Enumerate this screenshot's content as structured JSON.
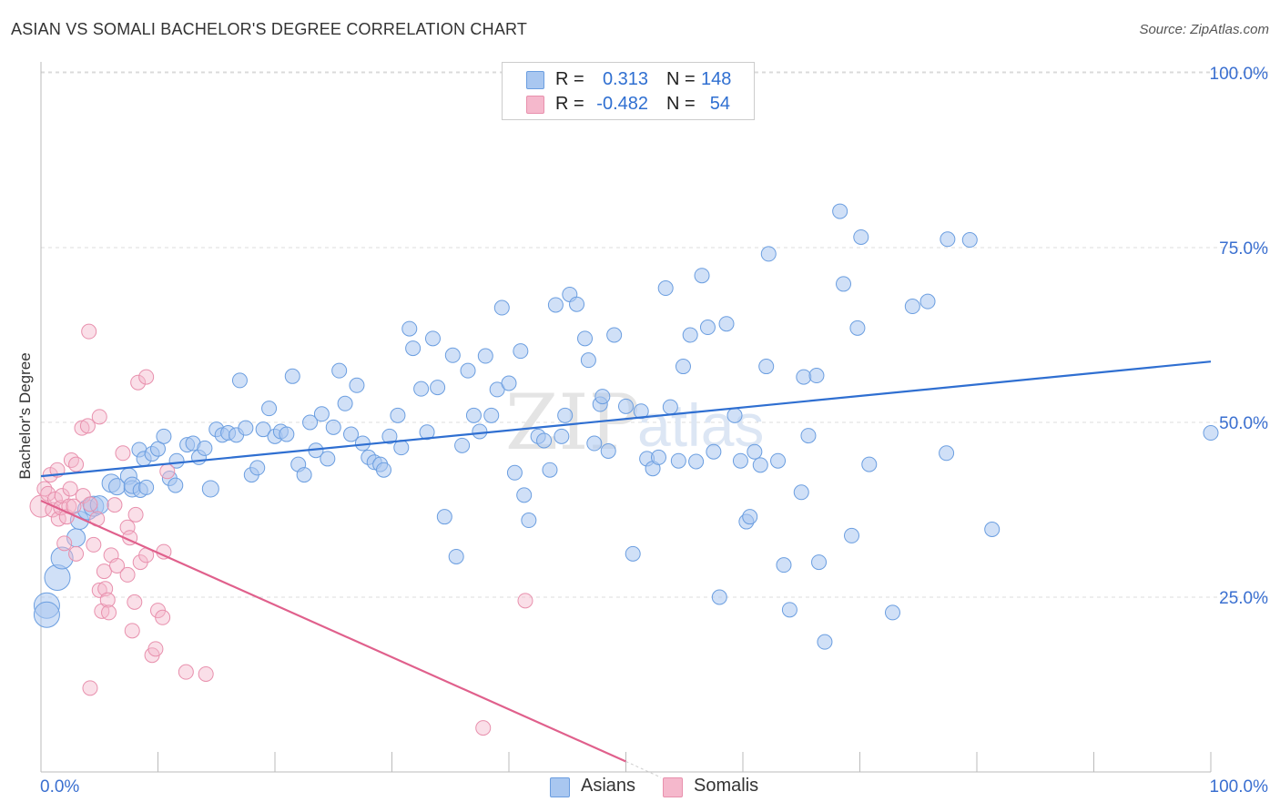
{
  "header": {
    "title": "ASIAN VS SOMALI BACHELOR'S DEGREE CORRELATION CHART",
    "source": "Source: ZipAtlas.com"
  },
  "legend": {
    "rows": [
      {
        "r_label": "R =",
        "r_value": "0.313",
        "n_label": "N =",
        "n_value": "148",
        "color": "#a9c7f0"
      },
      {
        "r_label": "R =",
        "r_value": "-0.482",
        "n_label": "N =",
        "n_value": "54",
        "color": "#f5b8cc"
      }
    ]
  },
  "watermark": {
    "zip": "ZIP",
    "atlas": "atlas"
  },
  "colors": {
    "asian_fill": "#a9c7f0",
    "asian_stroke": "#6b9ee0",
    "asian_line": "#2f6fd1",
    "somali_fill": "#f5b8cc",
    "somali_stroke": "#e890ad",
    "somali_line": "#e0608c",
    "axis_label": "#3a6fd0"
  },
  "chart_data": {
    "type": "scatter",
    "title": "ASIAN VS SOMALI BACHELOR'S DEGREE CORRELATION CHART",
    "xlabel": "",
    "ylabel": "Bachelor's Degree",
    "xlim": [
      0,
      100
    ],
    "ylim": [
      0,
      100
    ],
    "x_tick_labels": [
      "0.0%",
      "100.0%"
    ],
    "y_tick_labels": [
      "25.0%",
      "50.0%",
      "75.0%",
      "100.0%"
    ],
    "y_ticks": [
      25,
      50,
      75,
      100
    ],
    "grid": true,
    "legend_position": "top-center",
    "series": [
      {
        "name": "Asians",
        "trend": {
          "x": [
            0,
            100
          ],
          "y": [
            42.3,
            58.7
          ]
        },
        "points": [
          [
            0.5,
            23.8,
            14
          ],
          [
            0.5,
            22.5,
            14
          ],
          [
            1.4,
            27.8,
            14
          ],
          [
            1.8,
            30.6,
            12
          ],
          [
            3.0,
            33.5,
            10
          ],
          [
            3.3,
            36.0,
            10
          ],
          [
            4.0,
            37.5,
            11
          ],
          [
            4.5,
            38.0,
            11
          ],
          [
            5.0,
            38.2,
            10
          ],
          [
            6.0,
            41.3,
            10
          ],
          [
            6.5,
            40.8,
            9
          ],
          [
            7.5,
            42.3,
            9
          ],
          [
            7.8,
            40.5,
            9
          ],
          [
            7.8,
            41.0,
            9
          ],
          [
            8.5,
            40.3,
            8
          ],
          [
            9.0,
            40.7,
            8
          ],
          [
            8.4,
            46.1,
            8
          ],
          [
            8.8,
            44.8,
            8
          ],
          [
            9.5,
            45.5,
            8
          ],
          [
            10.0,
            46.2,
            8
          ],
          [
            10.5,
            48.0,
            8
          ],
          [
            11.0,
            42.0,
            8
          ],
          [
            11.5,
            41.0,
            8
          ],
          [
            11.6,
            44.5,
            8
          ],
          [
            12.5,
            46.8,
            8
          ],
          [
            13.0,
            47.0,
            8
          ],
          [
            13.5,
            45.0,
            8
          ],
          [
            14.0,
            46.3,
            8
          ],
          [
            14.5,
            40.5,
            9
          ],
          [
            15.0,
            49.0,
            8
          ],
          [
            15.5,
            48.2,
            8
          ],
          [
            16.0,
            48.5,
            8
          ],
          [
            16.7,
            48.2,
            8
          ],
          [
            17.0,
            56.0,
            8
          ],
          [
            17.5,
            49.2,
            8
          ],
          [
            18.0,
            42.5,
            8
          ],
          [
            18.5,
            43.5,
            8
          ],
          [
            19.0,
            49.0,
            8
          ],
          [
            19.5,
            52.0,
            8
          ],
          [
            20.0,
            48.0,
            8
          ],
          [
            20.5,
            48.7,
            8
          ],
          [
            21.0,
            48.3,
            8
          ],
          [
            21.5,
            56.6,
            8
          ],
          [
            22.0,
            44.0,
            8
          ],
          [
            22.5,
            42.5,
            8
          ],
          [
            23.0,
            50.0,
            8
          ],
          [
            23.5,
            46.0,
            8
          ],
          [
            24.0,
            51.2,
            8
          ],
          [
            24.5,
            44.8,
            8
          ],
          [
            25.0,
            49.3,
            8
          ],
          [
            25.5,
            57.4,
            8
          ],
          [
            26.0,
            52.7,
            8
          ],
          [
            26.5,
            48.3,
            8
          ],
          [
            27.0,
            55.3,
            8
          ],
          [
            27.5,
            47.0,
            8
          ],
          [
            28.0,
            45.0,
            8
          ],
          [
            28.5,
            44.3,
            8
          ],
          [
            29.0,
            44.0,
            8
          ],
          [
            29.3,
            43.2,
            8
          ],
          [
            29.8,
            48.0,
            8
          ],
          [
            30.5,
            51.0,
            8
          ],
          [
            30.8,
            46.4,
            8
          ],
          [
            31.5,
            63.4,
            8
          ],
          [
            31.8,
            60.6,
            8
          ],
          [
            32.5,
            54.8,
            8
          ],
          [
            33.0,
            48.6,
            8
          ],
          [
            33.5,
            62.0,
            8
          ],
          [
            33.9,
            55.0,
            8
          ],
          [
            34.5,
            36.5,
            8
          ],
          [
            35.2,
            59.6,
            8
          ],
          [
            35.5,
            30.8,
            8
          ],
          [
            36.0,
            46.7,
            8
          ],
          [
            36.5,
            57.4,
            8
          ],
          [
            37.0,
            51.0,
            8
          ],
          [
            37.5,
            48.7,
            8
          ],
          [
            38.0,
            59.5,
            8
          ],
          [
            38.5,
            51.0,
            8
          ],
          [
            39.0,
            54.7,
            8
          ],
          [
            39.4,
            66.4,
            8
          ],
          [
            40.0,
            55.6,
            8
          ],
          [
            40.5,
            42.8,
            8
          ],
          [
            41.0,
            60.2,
            8
          ],
          [
            41.3,
            39.6,
            8
          ],
          [
            41.7,
            36.0,
            8
          ],
          [
            42.5,
            48.0,
            8
          ],
          [
            43.0,
            47.4,
            8
          ],
          [
            43.5,
            43.2,
            8
          ],
          [
            44.0,
            66.8,
            8
          ],
          [
            44.5,
            48.0,
            8
          ],
          [
            44.8,
            51.0,
            8
          ],
          [
            45.2,
            68.3,
            8
          ],
          [
            45.8,
            66.9,
            8
          ],
          [
            46.5,
            62.0,
            8
          ],
          [
            46.8,
            58.9,
            8
          ],
          [
            47.3,
            47.0,
            8
          ],
          [
            47.8,
            52.6,
            8
          ],
          [
            48.0,
            53.7,
            8
          ],
          [
            48.5,
            45.9,
            8
          ],
          [
            49.0,
            62.5,
            8
          ],
          [
            50.0,
            52.3,
            8
          ],
          [
            50.6,
            31.2,
            8
          ],
          [
            51.3,
            51.6,
            8
          ],
          [
            51.8,
            44.8,
            8
          ],
          [
            52.3,
            43.4,
            8
          ],
          [
            52.8,
            45.0,
            8
          ],
          [
            53.4,
            69.2,
            8
          ],
          [
            53.8,
            52.2,
            8
          ],
          [
            54.5,
            44.5,
            8
          ],
          [
            54.9,
            58.0,
            8
          ],
          [
            55.5,
            62.5,
            8
          ],
          [
            56.0,
            44.4,
            8
          ],
          [
            56.5,
            71.0,
            8
          ],
          [
            57.0,
            63.6,
            8
          ],
          [
            57.5,
            45.8,
            8
          ],
          [
            58.0,
            25.0,
            8
          ],
          [
            58.6,
            64.1,
            8
          ],
          [
            59.3,
            51.0,
            8
          ],
          [
            59.8,
            44.5,
            8
          ],
          [
            60.3,
            35.8,
            8
          ],
          [
            60.6,
            36.5,
            8
          ],
          [
            61.0,
            45.8,
            8
          ],
          [
            61.5,
            43.9,
            8
          ],
          [
            62.0,
            58.0,
            8
          ],
          [
            62.2,
            74.1,
            8
          ],
          [
            63.0,
            44.5,
            8
          ],
          [
            63.5,
            29.6,
            8
          ],
          [
            64.0,
            23.2,
            8
          ],
          [
            65.0,
            40.0,
            8
          ],
          [
            65.2,
            56.5,
            8
          ],
          [
            65.6,
            48.1,
            8
          ],
          [
            66.3,
            56.7,
            8
          ],
          [
            66.5,
            30.0,
            8
          ],
          [
            67.0,
            18.6,
            8
          ],
          [
            68.3,
            80.2,
            8
          ],
          [
            68.6,
            69.8,
            8
          ],
          [
            69.3,
            33.8,
            8
          ],
          [
            69.8,
            63.5,
            8
          ],
          [
            70.1,
            76.5,
            8
          ],
          [
            70.8,
            44.0,
            8
          ],
          [
            72.8,
            22.8,
            8
          ],
          [
            74.5,
            66.6,
            8
          ],
          [
            75.8,
            67.3,
            8
          ],
          [
            77.4,
            45.6,
            8
          ],
          [
            77.5,
            76.2,
            8
          ],
          [
            79.4,
            76.1,
            8
          ],
          [
            81.3,
            34.7,
            8
          ],
          [
            100.0,
            48.5,
            8
          ]
        ]
      },
      {
        "name": "Somalis",
        "trend": {
          "x": [
            0,
            50
          ],
          "y": [
            38.8,
            1.5
          ]
        },
        "points": [
          [
            0.0,
            38.0,
            12
          ],
          [
            0.3,
            40.5,
            8
          ],
          [
            0.6,
            39.8,
            8
          ],
          [
            0.8,
            42.5,
            8
          ],
          [
            1.0,
            37.5,
            8
          ],
          [
            1.2,
            39.0,
            8
          ],
          [
            1.4,
            43.2,
            8
          ],
          [
            1.5,
            36.2,
            8
          ],
          [
            1.7,
            37.8,
            8
          ],
          [
            1.8,
            39.5,
            8
          ],
          [
            2.0,
            32.7,
            8
          ],
          [
            2.2,
            36.5,
            8
          ],
          [
            2.4,
            38.0,
            8
          ],
          [
            2.5,
            40.5,
            8
          ],
          [
            2.6,
            44.6,
            8
          ],
          [
            2.8,
            38.0,
            8
          ],
          [
            3.0,
            31.2,
            8
          ],
          [
            3.0,
            44.0,
            8
          ],
          [
            3.5,
            49.2,
            8
          ],
          [
            3.6,
            39.5,
            8
          ],
          [
            4.0,
            49.5,
            8
          ],
          [
            4.1,
            63.0,
            8
          ],
          [
            4.2,
            38.3,
            8
          ],
          [
            4.5,
            32.5,
            8
          ],
          [
            4.8,
            36.2,
            8
          ],
          [
            5.0,
            26.0,
            8
          ],
          [
            5.0,
            50.8,
            8
          ],
          [
            5.2,
            23.0,
            8
          ],
          [
            5.4,
            28.7,
            8
          ],
          [
            5.5,
            26.2,
            8
          ],
          [
            5.7,
            24.6,
            8
          ],
          [
            5.8,
            22.8,
            8
          ],
          [
            6.0,
            31.0,
            8
          ],
          [
            6.3,
            38.2,
            8
          ],
          [
            6.5,
            29.5,
            8
          ],
          [
            7.0,
            45.6,
            8
          ],
          [
            7.4,
            28.2,
            8
          ],
          [
            7.4,
            35.0,
            8
          ],
          [
            7.6,
            33.5,
            8
          ],
          [
            7.8,
            20.2,
            8
          ],
          [
            8.0,
            24.3,
            8
          ],
          [
            8.1,
            36.8,
            8
          ],
          [
            8.3,
            55.7,
            8
          ],
          [
            8.5,
            30.0,
            8
          ],
          [
            9.0,
            56.5,
            8
          ],
          [
            9.0,
            31.0,
            8
          ],
          [
            9.5,
            16.7,
            8
          ],
          [
            9.8,
            17.6,
            8
          ],
          [
            10.0,
            23.1,
            8
          ],
          [
            10.4,
            22.1,
            8
          ],
          [
            10.5,
            31.5,
            8
          ],
          [
            10.8,
            43.0,
            8
          ],
          [
            12.4,
            14.3,
            8
          ],
          [
            14.1,
            14.0,
            8
          ],
          [
            4.2,
            12.0,
            8
          ],
          [
            37.8,
            6.3,
            8
          ],
          [
            41.4,
            24.5,
            8
          ]
        ]
      }
    ]
  }
}
